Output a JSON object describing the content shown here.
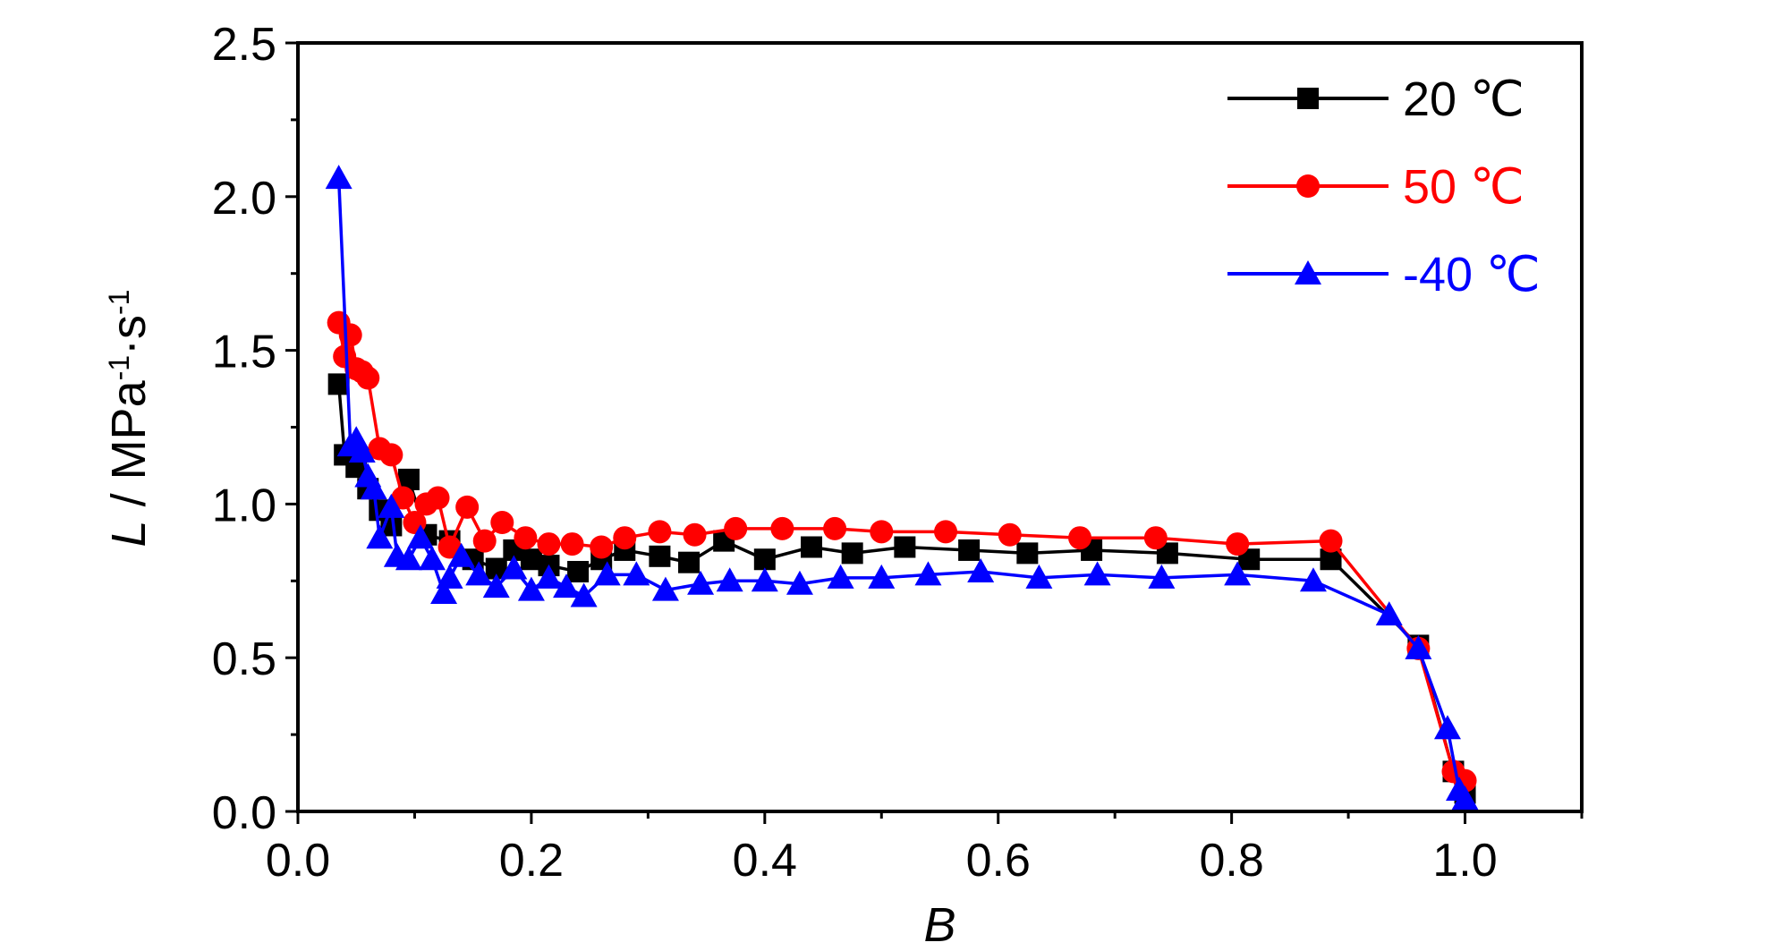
{
  "chart_data": {
    "type": "line",
    "xlabel": "B",
    "ylabel": "L / MPa⁻¹·s⁻¹",
    "ylabel_parts": {
      "italic": "L",
      "rest": " / MPa",
      "exp1": "-1",
      "mid": "·s",
      "exp2": "-1"
    },
    "xlim": [
      0.0,
      1.1
    ],
    "ylim": [
      0.0,
      2.5
    ],
    "xticks": [
      "0.0",
      "0.2",
      "0.4",
      "0.6",
      "0.8",
      "1.0"
    ],
    "yticks": [
      "0.0",
      "0.5",
      "1.0",
      "1.5",
      "2.0",
      "2.5"
    ],
    "grid": false,
    "legend_position": "top-right",
    "series": [
      {
        "name": "20 ℃",
        "color": "#000000",
        "marker": "square",
        "x": [
          0.035,
          0.04,
          0.05,
          0.06,
          0.07,
          0.08,
          0.095,
          0.11,
          0.13,
          0.15,
          0.17,
          0.185,
          0.2,
          0.215,
          0.24,
          0.26,
          0.28,
          0.31,
          0.335,
          0.365,
          0.4,
          0.44,
          0.475,
          0.52,
          0.575,
          0.625,
          0.68,
          0.745,
          0.815,
          0.885,
          0.96,
          0.99,
          1.0
        ],
        "y": [
          1.39,
          1.16,
          1.12,
          1.05,
          0.98,
          0.93,
          1.08,
          0.9,
          0.88,
          0.82,
          0.79,
          0.85,
          0.82,
          0.8,
          0.78,
          0.82,
          0.85,
          0.83,
          0.81,
          0.88,
          0.82,
          0.86,
          0.84,
          0.86,
          0.85,
          0.84,
          0.85,
          0.84,
          0.82,
          0.82,
          0.54,
          0.13,
          0.06
        ]
      },
      {
        "name": "50 ℃",
        "color": "#ff0000",
        "marker": "circle",
        "x": [
          0.035,
          0.04,
          0.045,
          0.05,
          0.055,
          0.06,
          0.07,
          0.08,
          0.09,
          0.1,
          0.11,
          0.12,
          0.13,
          0.145,
          0.16,
          0.175,
          0.195,
          0.215,
          0.235,
          0.26,
          0.28,
          0.31,
          0.34,
          0.375,
          0.415,
          0.46,
          0.5,
          0.555,
          0.61,
          0.67,
          0.735,
          0.805,
          0.885,
          0.96,
          0.99,
          1.0
        ],
        "y": [
          1.59,
          1.48,
          1.55,
          1.44,
          1.43,
          1.41,
          1.18,
          1.16,
          1.02,
          0.94,
          1.0,
          1.02,
          0.86,
          0.99,
          0.88,
          0.94,
          0.89,
          0.87,
          0.87,
          0.86,
          0.89,
          0.91,
          0.9,
          0.92,
          0.92,
          0.92,
          0.91,
          0.91,
          0.9,
          0.89,
          0.89,
          0.87,
          0.88,
          0.53,
          0.13,
          0.1
        ]
      },
      {
        "name": "-40 ℃",
        "color": "#0000ff",
        "marker": "triangle",
        "x": [
          0.035,
          0.045,
          0.05,
          0.055,
          0.06,
          0.065,
          0.07,
          0.08,
          0.085,
          0.095,
          0.105,
          0.115,
          0.125,
          0.13,
          0.14,
          0.155,
          0.17,
          0.185,
          0.2,
          0.215,
          0.23,
          0.245,
          0.265,
          0.29,
          0.315,
          0.345,
          0.37,
          0.4,
          0.43,
          0.465,
          0.5,
          0.54,
          0.585,
          0.635,
          0.685,
          0.74,
          0.805,
          0.87,
          0.935,
          0.96,
          0.985,
          0.995,
          1.0
        ],
        "y": [
          2.06,
          1.19,
          1.21,
          1.17,
          1.09,
          1.05,
          0.89,
          0.99,
          0.83,
          0.82,
          0.89,
          0.82,
          0.71,
          0.76,
          0.83,
          0.77,
          0.73,
          0.79,
          0.72,
          0.76,
          0.73,
          0.7,
          0.77,
          0.77,
          0.72,
          0.74,
          0.75,
          0.75,
          0.74,
          0.76,
          0.76,
          0.77,
          0.78,
          0.76,
          0.77,
          0.76,
          0.77,
          0.75,
          0.64,
          0.53,
          0.27,
          0.07,
          0.04
        ]
      }
    ]
  }
}
